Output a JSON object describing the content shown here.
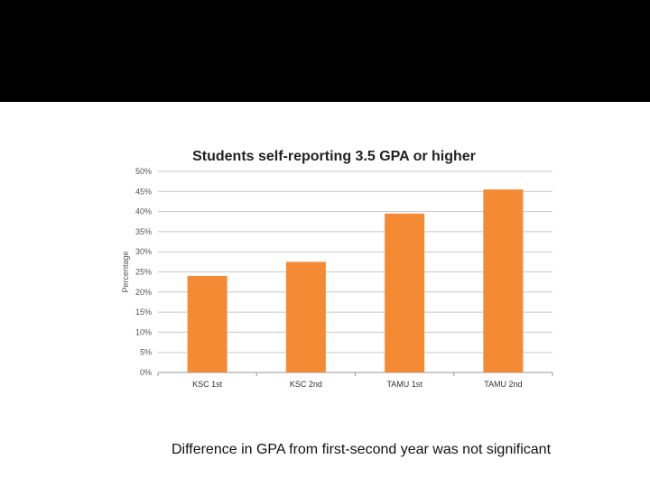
{
  "slide": {
    "caption": "Difference in GPA from first-second year was not significant"
  },
  "chart_data": {
    "type": "bar",
    "title": "Students self-reporting 3.5 GPA or higher",
    "xlabel": "",
    "ylabel": "Percentage",
    "categories": [
      "KSC 1st",
      "KSC 2nd",
      "TAMU 1st",
      "TAMU 2nd"
    ],
    "values": [
      24,
      27.5,
      39.5,
      45.5
    ],
    "ylim": [
      0,
      50
    ],
    "yticks": [
      "0%",
      "5%",
      "10%",
      "15%",
      "20%",
      "25%",
      "30%",
      "35%",
      "40%",
      "45%",
      "50%"
    ],
    "grid": true,
    "bar_color": "#F58A35",
    "legend": "none"
  }
}
